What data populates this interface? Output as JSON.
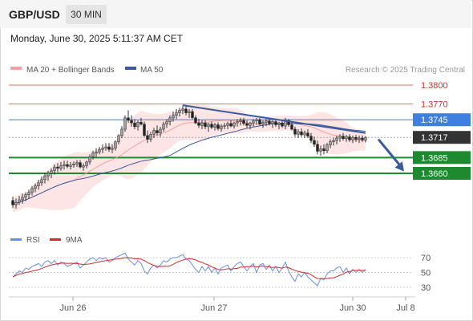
{
  "header": {
    "symbol": "GBP/USD",
    "timeframe": "30 MIN",
    "datetime": "Monday, June 30, 2025 5:11:37 AM CET"
  },
  "legend": {
    "ma20": "MA 20 + Bollinger Bands",
    "ma50": "MA 50",
    "credit": "Research © 2025 Trading Central",
    "rsi": "RSI",
    "rsi_ma": "9MA"
  },
  "colors": {
    "resistance": "#ea6b66",
    "pivot": "#3f7fde",
    "support": "#1e8a2f",
    "ma20": "#f0a0a0",
    "ma50": "#3a5a9c",
    "bb_fill": "#fde0e0",
    "rsi": "#6a8fe0",
    "rsi_ma": "#d42a2a",
    "up_candle": "#a0a0a0",
    "down_candle": "#222222",
    "price_tag": "#333333"
  },
  "chart_data": [
    {
      "type": "candlestick",
      "title": "GBP/USD",
      "x_ticks": [
        "Jun 26",
        "Jun 27",
        "Jun 30",
        "Jul 8"
      ],
      "ylim": [
        1.358,
        1.381
      ],
      "last_price": 1.3717,
      "levels": [
        {
          "label": "1.3800",
          "value": 1.38,
          "role": "resistance"
        },
        {
          "label": "1.3770",
          "value": 1.377,
          "role": "resistance"
        },
        {
          "label": "1.3745",
          "value": 1.3745,
          "role": "pivot"
        },
        {
          "label": "1.3685",
          "value": 1.3685,
          "role": "support"
        },
        {
          "label": "1.3660",
          "value": 1.366,
          "role": "support"
        }
      ],
      "price_label": "1.3717",
      "trend_line": {
        "from": {
          "bar": 53,
          "price": 1.3768
        },
        "to": {
          "bar": 110,
          "price": 1.3724
        }
      },
      "projection_arrow": {
        "from": {
          "bar": 114,
          "price": 1.3714
        },
        "to": {
          "bar": 122,
          "price": 1.3663
        }
      },
      "ohlc": [
        [
          1.3617,
          1.3623,
          1.3605,
          1.361
        ],
        [
          1.361,
          1.362,
          1.3604,
          1.3614
        ],
        [
          1.3614,
          1.3624,
          1.361,
          1.3618
        ],
        [
          1.3618,
          1.3628,
          1.3612,
          1.3622
        ],
        [
          1.3622,
          1.363,
          1.3616,
          1.3626
        ],
        [
          1.3626,
          1.3634,
          1.362,
          1.363
        ],
        [
          1.363,
          1.364,
          1.3625,
          1.3636
        ],
        [
          1.3636,
          1.3644,
          1.363,
          1.364
        ],
        [
          1.364,
          1.365,
          1.3634,
          1.3645
        ],
        [
          1.3645,
          1.3655,
          1.364,
          1.365
        ],
        [
          1.365,
          1.366,
          1.3644,
          1.3656
        ],
        [
          1.3656,
          1.3664,
          1.3648,
          1.366
        ],
        [
          1.366,
          1.3668,
          1.3652,
          1.3664
        ],
        [
          1.3664,
          1.3674,
          1.3658,
          1.367
        ],
        [
          1.367,
          1.3676,
          1.3662,
          1.3668
        ],
        [
          1.3668,
          1.3678,
          1.3664,
          1.3672
        ],
        [
          1.3672,
          1.368,
          1.3666,
          1.3674
        ],
        [
          1.3674,
          1.368,
          1.3668,
          1.3671
        ],
        [
          1.3671,
          1.3678,
          1.3666,
          1.3673
        ],
        [
          1.3673,
          1.3679,
          1.3669,
          1.3675
        ],
        [
          1.3675,
          1.3681,
          1.367,
          1.3677
        ],
        [
          1.3677,
          1.3681,
          1.3668,
          1.367
        ],
        [
          1.367,
          1.3676,
          1.3664,
          1.3672
        ],
        [
          1.3672,
          1.368,
          1.3668,
          1.3678
        ],
        [
          1.3678,
          1.369,
          1.3674,
          1.3686
        ],
        [
          1.3686,
          1.3696,
          1.3682,
          1.3692
        ],
        [
          1.3692,
          1.37,
          1.3686,
          1.3694
        ],
        [
          1.3694,
          1.3702,
          1.369,
          1.3698
        ],
        [
          1.3698,
          1.3706,
          1.3692,
          1.37
        ],
        [
          1.37,
          1.3708,
          1.3696,
          1.3702
        ],
        [
          1.3702,
          1.3708,
          1.3694,
          1.3698
        ],
        [
          1.3698,
          1.3706,
          1.3692,
          1.37
        ],
        [
          1.37,
          1.3712,
          1.3696,
          1.371
        ],
        [
          1.371,
          1.3722,
          1.3706,
          1.372
        ],
        [
          1.372,
          1.3735,
          1.3716,
          1.373
        ],
        [
          1.373,
          1.3752,
          1.3726,
          1.3748
        ],
        [
          1.3748,
          1.376,
          1.374,
          1.3744
        ],
        [
          1.3744,
          1.3752,
          1.3734,
          1.374
        ],
        [
          1.374,
          1.3746,
          1.373,
          1.3734
        ],
        [
          1.3734,
          1.3744,
          1.3728,
          1.3741
        ],
        [
          1.3741,
          1.3748,
          1.3736,
          1.3738
        ],
        [
          1.3738,
          1.3742,
          1.3718,
          1.372
        ],
        [
          1.372,
          1.3728,
          1.3708,
          1.3714
        ],
        [
          1.3714,
          1.3726,
          1.371,
          1.3722
        ],
        [
          1.3722,
          1.3732,
          1.3716,
          1.3728
        ],
        [
          1.3728,
          1.3736,
          1.372,
          1.3724
        ],
        [
          1.3724,
          1.3734,
          1.3718,
          1.373
        ],
        [
          1.373,
          1.3742,
          1.3726,
          1.3738
        ],
        [
          1.3738,
          1.3746,
          1.3732,
          1.3742
        ],
        [
          1.3742,
          1.3752,
          1.3736,
          1.3748
        ],
        [
          1.3748,
          1.3758,
          1.3742,
          1.3752
        ],
        [
          1.3752,
          1.3762,
          1.3746,
          1.3756
        ],
        [
          1.3756,
          1.3764,
          1.375,
          1.376
        ],
        [
          1.376,
          1.3768,
          1.3754,
          1.3762
        ],
        [
          1.3762,
          1.3766,
          1.3752,
          1.3756
        ],
        [
          1.3756,
          1.3762,
          1.3748,
          1.3758
        ],
        [
          1.3758,
          1.3762,
          1.3746,
          1.3748
        ],
        [
          1.3748,
          1.3752,
          1.3738,
          1.374
        ],
        [
          1.374,
          1.3746,
          1.3732,
          1.3736
        ],
        [
          1.3736,
          1.3744,
          1.373,
          1.374
        ],
        [
          1.374,
          1.3744,
          1.373,
          1.3734
        ],
        [
          1.3734,
          1.374,
          1.3726,
          1.3738
        ],
        [
          1.3738,
          1.3742,
          1.373,
          1.3733
        ],
        [
          1.3733,
          1.374,
          1.3728,
          1.3737
        ],
        [
          1.3737,
          1.3741,
          1.3728,
          1.3731
        ],
        [
          1.3731,
          1.3738,
          1.3726,
          1.3735
        ],
        [
          1.3735,
          1.374,
          1.373,
          1.3736
        ],
        [
          1.3736,
          1.3742,
          1.373,
          1.3739
        ],
        [
          1.3739,
          1.3744,
          1.3733,
          1.3735
        ],
        [
          1.3735,
          1.3742,
          1.3731,
          1.374
        ],
        [
          1.374,
          1.3746,
          1.3734,
          1.3742
        ],
        [
          1.3742,
          1.3748,
          1.3736,
          1.3744
        ],
        [
          1.3744,
          1.3748,
          1.3736,
          1.3739
        ],
        [
          1.3739,
          1.3744,
          1.3732,
          1.3736
        ],
        [
          1.3736,
          1.3742,
          1.373,
          1.374
        ],
        [
          1.374,
          1.3746,
          1.3734,
          1.3743
        ],
        [
          1.3743,
          1.3748,
          1.3737,
          1.3745
        ],
        [
          1.3745,
          1.3748,
          1.3736,
          1.3738
        ],
        [
          1.3738,
          1.3744,
          1.3732,
          1.3741
        ],
        [
          1.3741,
          1.3746,
          1.3735,
          1.3743
        ],
        [
          1.3743,
          1.3748,
          1.3736,
          1.3739
        ],
        [
          1.3739,
          1.3744,
          1.3732,
          1.3742
        ],
        [
          1.3742,
          1.3746,
          1.3734,
          1.3737
        ],
        [
          1.3737,
          1.3742,
          1.373,
          1.374
        ],
        [
          1.374,
          1.3745,
          1.3732,
          1.3735
        ],
        [
          1.3735,
          1.3748,
          1.373,
          1.3744
        ],
        [
          1.3744,
          1.3746,
          1.3734,
          1.3737
        ],
        [
          1.3737,
          1.3741,
          1.3728,
          1.373
        ],
        [
          1.373,
          1.3734,
          1.3718,
          1.3722
        ],
        [
          1.3722,
          1.373,
          1.3716,
          1.3726
        ],
        [
          1.3726,
          1.3731,
          1.3718,
          1.3721
        ],
        [
          1.3721,
          1.3728,
          1.3716,
          1.3724
        ],
        [
          1.3724,
          1.373,
          1.3716,
          1.3719
        ],
        [
          1.3719,
          1.3724,
          1.3708,
          1.3712
        ],
        [
          1.3712,
          1.3718,
          1.3702,
          1.3706
        ],
        [
          1.3706,
          1.3712,
          1.369,
          1.3695
        ],
        [
          1.3695,
          1.3704,
          1.3688,
          1.3699
        ],
        [
          1.3699,
          1.3706,
          1.369,
          1.3696
        ],
        [
          1.3696,
          1.3708,
          1.3692,
          1.3705
        ],
        [
          1.3705,
          1.3714,
          1.37,
          1.371
        ],
        [
          1.371,
          1.3716,
          1.3704,
          1.3712
        ],
        [
          1.3712,
          1.372,
          1.3706,
          1.3716
        ],
        [
          1.3716,
          1.3722,
          1.371,
          1.3719
        ],
        [
          1.3719,
          1.3724,
          1.3712,
          1.3715
        ],
        [
          1.3715,
          1.3721,
          1.371,
          1.3718
        ],
        [
          1.3718,
          1.3722,
          1.371,
          1.3713
        ],
        [
          1.3713,
          1.372,
          1.3708,
          1.3717
        ],
        [
          1.3717,
          1.3721,
          1.371,
          1.3714
        ],
        [
          1.3714,
          1.372,
          1.3708,
          1.3716
        ],
        [
          1.3716,
          1.372,
          1.371,
          1.3713
        ],
        [
          1.3713,
          1.3719,
          1.3709,
          1.3717
        ]
      ]
    },
    {
      "type": "line",
      "series": [
        {
          "name": "RSI"
        },
        {
          "name": "9MA"
        }
      ],
      "y_ticks": [
        70,
        50,
        30
      ],
      "ylim": [
        20,
        82
      ],
      "rsi": [
        44,
        48,
        52,
        50,
        56,
        54,
        58,
        60,
        62,
        58,
        64,
        66,
        62,
        66,
        60,
        64,
        62,
        58,
        60,
        62,
        64,
        56,
        60,
        64,
        68,
        70,
        66,
        70,
        68,
        70,
        64,
        66,
        70,
        72,
        74,
        76,
        68,
        64,
        60,
        66,
        62,
        52,
        48,
        56,
        60,
        56,
        60,
        66,
        64,
        68,
        70,
        70,
        72,
        74,
        68,
        66,
        60,
        54,
        50,
        58,
        52,
        58,
        50,
        56,
        48,
        56,
        58,
        60,
        52,
        58,
        62,
        64,
        58,
        52,
        58,
        62,
        50,
        60,
        62,
        54,
        60,
        52,
        58,
        50,
        56,
        64,
        52,
        44,
        38,
        48,
        44,
        50,
        44,
        40,
        36,
        32,
        42,
        40,
        48,
        52,
        52,
        56,
        58,
        50,
        56,
        48,
        54,
        50,
        54,
        50,
        54
      ]
    }
  ]
}
